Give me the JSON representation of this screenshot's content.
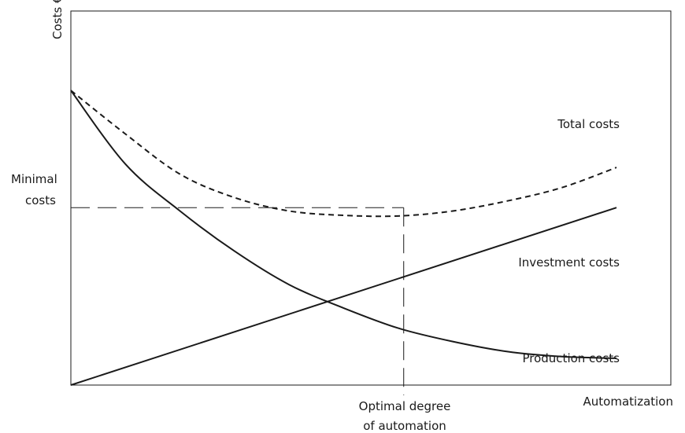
{
  "chart_data": {
    "type": "line",
    "title": "",
    "xlabel": "Automatization",
    "ylabel": "Costs €",
    "x_range": [
      0,
      1
    ],
    "y_range": [
      0,
      1
    ],
    "grid": false,
    "legend": "none",
    "series": [
      {
        "name": "Total costs",
        "style": "dashed",
        "points": [
          [
            0,
            0.88
          ],
          [
            0.1,
            0.75
          ],
          [
            0.2,
            0.63
          ],
          [
            0.3,
            0.56
          ],
          [
            0.4,
            0.52
          ],
          [
            0.5,
            0.507
          ],
          [
            0.6,
            0.505
          ],
          [
            0.7,
            0.52
          ],
          [
            0.8,
            0.55
          ],
          [
            0.9,
            0.59
          ],
          [
            1.0,
            0.65
          ]
        ]
      },
      {
        "name": "Production costs",
        "style": "solid",
        "points": [
          [
            0,
            0.88
          ],
          [
            0.1,
            0.66
          ],
          [
            0.2,
            0.52
          ],
          [
            0.3,
            0.4
          ],
          [
            0.4,
            0.3
          ],
          [
            0.5,
            0.23
          ],
          [
            0.6,
            0.17
          ],
          [
            0.7,
            0.13
          ],
          [
            0.8,
            0.1
          ],
          [
            0.9,
            0.085
          ],
          [
            1.0,
            0.08
          ]
        ]
      },
      {
        "name": "Investment costs",
        "style": "solid",
        "points": [
          [
            0,
            0
          ],
          [
            1.0,
            0.53
          ]
        ]
      }
    ],
    "annotations": {
      "minimal_costs": {
        "label_line1": "Minimal",
        "label_line2": "costs",
        "y": 0.53
      },
      "optimal_degree": {
        "label_line1": "Optimal degree",
        "label_line2": "of automation",
        "x": 0.61
      }
    }
  }
}
